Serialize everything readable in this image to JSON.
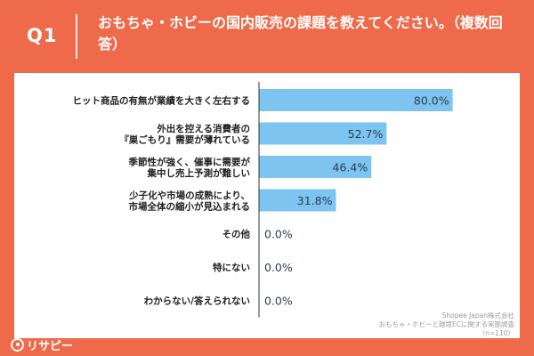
{
  "header": {
    "q_label": "Q1",
    "question": "おもちゃ・ホビーの国内販売の課題を教えてください。（複数回答）"
  },
  "chart_data": {
    "type": "bar",
    "orientation": "horizontal",
    "categories": [
      [
        "ヒット商品の有無が業績を大きく左右する"
      ],
      [
        "外出を控える消費者の",
        "『巣ごもり』需要が薄れている"
      ],
      [
        "季節性が強く、催事に需要が",
        "集中し売上予測が難しい"
      ],
      [
        "少子化や市場の成熟により、",
        "市場全体の縮小が見込まれる"
      ],
      [
        "その他"
      ],
      [
        "特にない"
      ],
      [
        "わからない/答えられない"
      ]
    ],
    "values": [
      80.0,
      52.7,
      46.4,
      31.8,
      0.0,
      0.0,
      0.0
    ],
    "value_labels": [
      "80.0%",
      "52.7%",
      "46.4%",
      "31.8%",
      "0.0%",
      "0.0%",
      "0.0%"
    ],
    "xlim": [
      0,
      100
    ],
    "bar_color": "#7ec4f0",
    "value_label_color": "#2b3e50",
    "axis_color": "#333333"
  },
  "source": {
    "line1": "Shopee Japan株式会社",
    "line2": "おもちゃ・ホビーと越境ECに関する実態調査",
    "line3": "（n=110）"
  },
  "logo": {
    "text": "リサピー",
    "icon": "risapy-logo-icon"
  }
}
